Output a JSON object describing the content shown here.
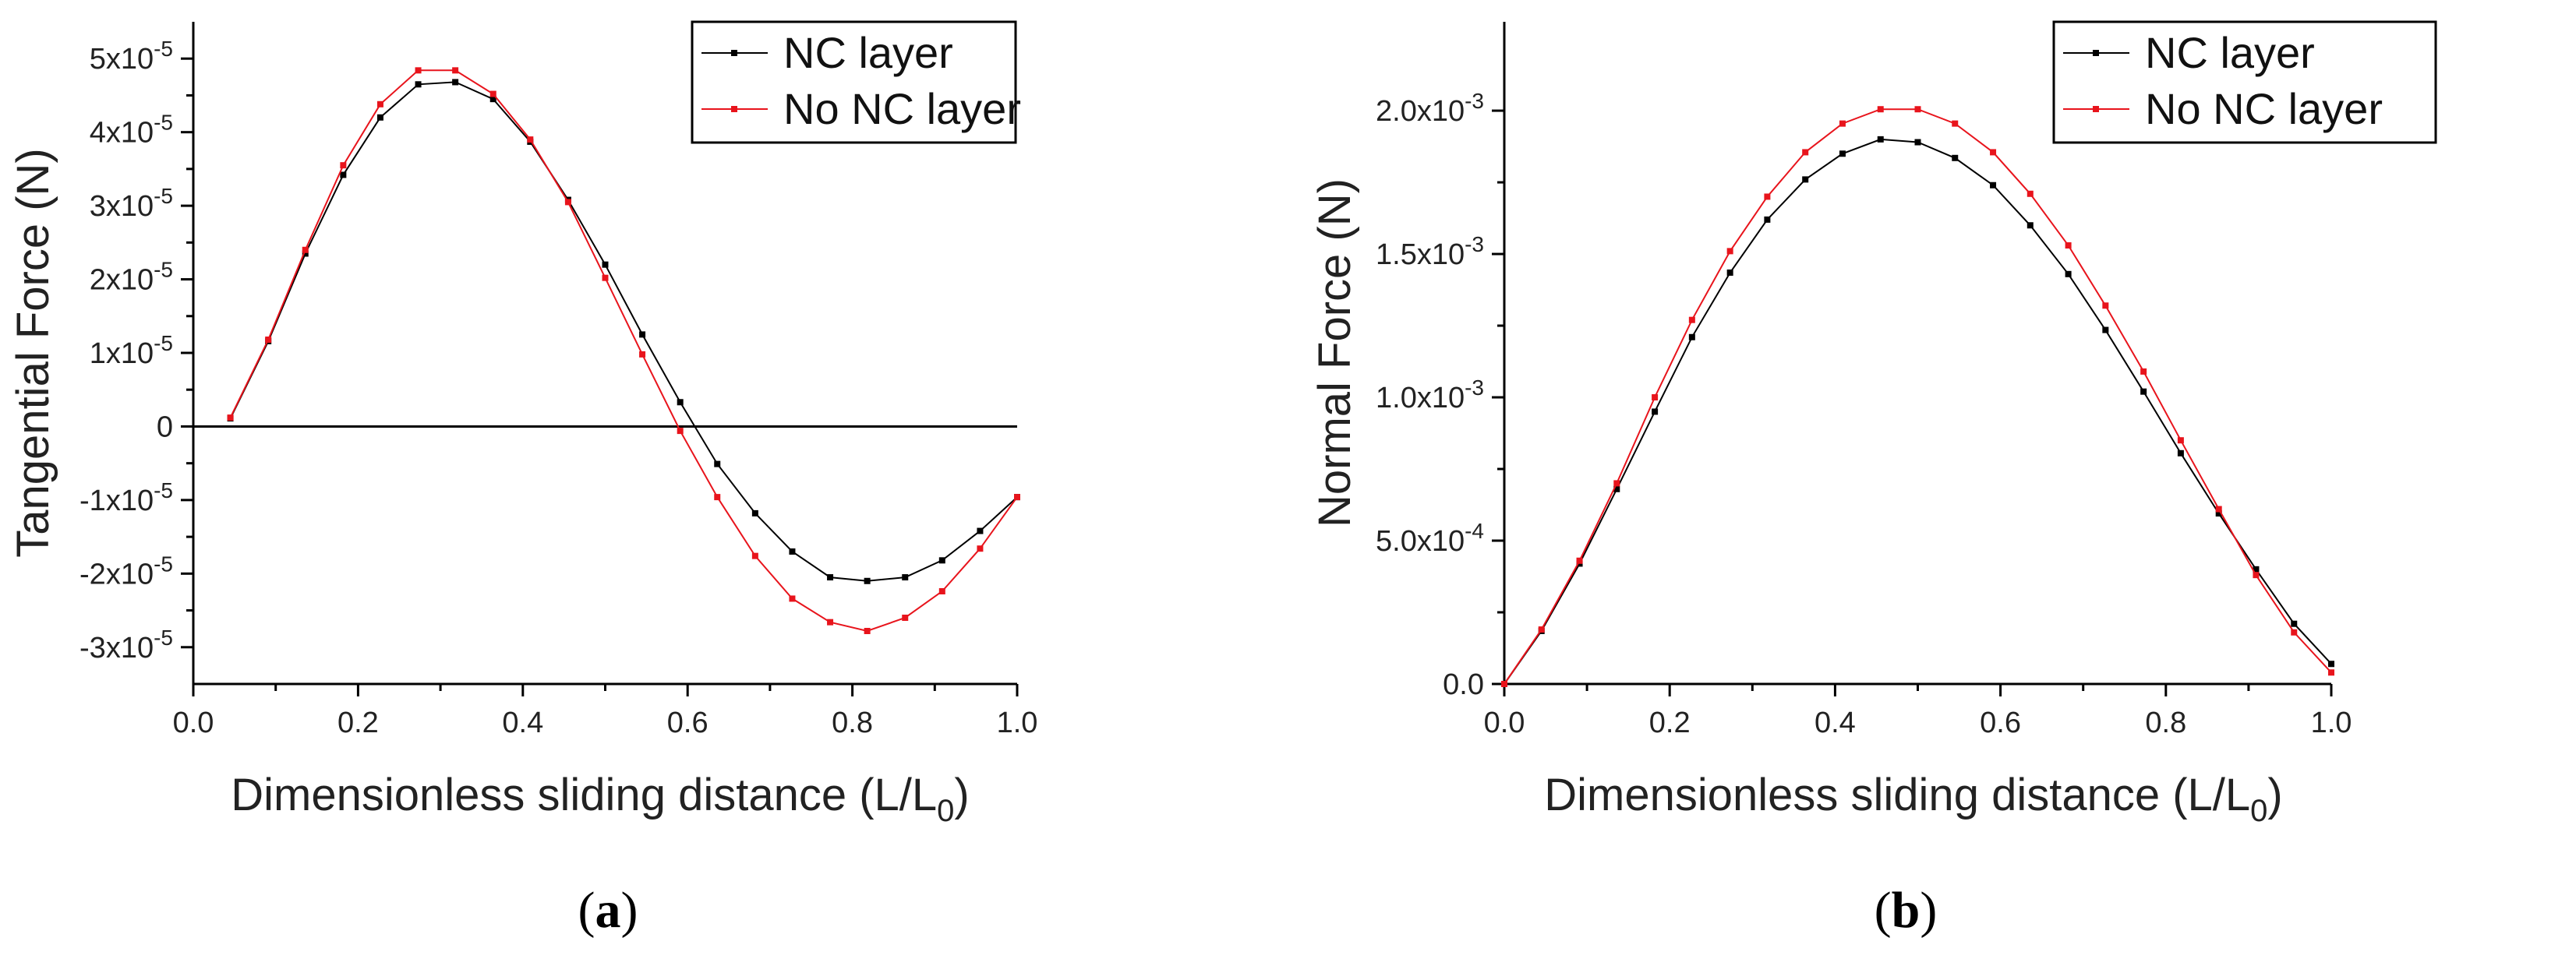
{
  "chart_data": [
    {
      "type": "line",
      "panel_label": "a",
      "xlabel_main": "Dimensionless sliding distance (L/L",
      "xlabel_sub": "0",
      "xlabel_end": ")",
      "ylabel": "Tangential Force (N)",
      "xlim": [
        0,
        1
      ],
      "ylim": [
        -3.5e-05,
        5.5e-05
      ],
      "zero_line": true,
      "legend_position": "top-right",
      "x_ticks": [
        {
          "value": 0.0,
          "label": "0.0"
        },
        {
          "value": 0.2,
          "label": "0.2"
        },
        {
          "value": 0.4,
          "label": "0.4"
        },
        {
          "value": 0.6,
          "label": "0.6"
        },
        {
          "value": 0.8,
          "label": "0.8"
        },
        {
          "value": 1.0,
          "label": "1.0"
        }
      ],
      "y_ticks": [
        {
          "value": 5e-05,
          "base": "5x10",
          "exp": "-5"
        },
        {
          "value": 4e-05,
          "base": "4x10",
          "exp": "-5"
        },
        {
          "value": 3e-05,
          "base": "3x10",
          "exp": "-5"
        },
        {
          "value": 2e-05,
          "base": "2x10",
          "exp": "-5"
        },
        {
          "value": 1e-05,
          "base": "1x10",
          "exp": "-5"
        },
        {
          "value": 0,
          "base": "0",
          "exp": ""
        },
        {
          "value": -1e-05,
          "base": "-1x10",
          "exp": "-5"
        },
        {
          "value": -2e-05,
          "base": "-2x10",
          "exp": "-5"
        },
        {
          "value": -3e-05,
          "base": "-3x10",
          "exp": "-5"
        }
      ],
      "series": [
        {
          "name": "NC layer",
          "color": "#000000",
          "x": [
            0.045,
            0.091,
            0.136,
            0.182,
            0.227,
            0.273,
            0.318,
            0.364,
            0.409,
            0.455,
            0.5,
            0.545,
            0.591,
            0.636,
            0.682,
            0.727,
            0.773,
            0.818,
            0.864,
            0.909,
            0.955,
            1.0
          ],
          "y": [
            1.1e-06,
            1.16e-05,
            2.35e-05,
            3.42e-05,
            4.2e-05,
            4.65e-05,
            4.68e-05,
            4.45e-05,
            3.87e-05,
            3.08e-05,
            2.2e-05,
            1.25e-05,
            3.3e-06,
            -5.1e-06,
            -1.18e-05,
            -1.7e-05,
            -2.05e-05,
            -2.1e-05,
            -2.05e-05,
            -1.82e-05,
            -1.42e-05,
            -9.6e-06
          ]
        },
        {
          "name": "No NC layer",
          "color": "#e8141c",
          "x": [
            0.045,
            0.091,
            0.136,
            0.182,
            0.227,
            0.273,
            0.318,
            0.364,
            0.409,
            0.455,
            0.5,
            0.545,
            0.591,
            0.636,
            0.682,
            0.727,
            0.773,
            0.818,
            0.864,
            0.909,
            0.955,
            1.0
          ],
          "y": [
            1.2e-06,
            1.18e-05,
            2.4e-05,
            3.55e-05,
            4.38e-05,
            4.84e-05,
            4.84e-05,
            4.52e-05,
            3.9e-05,
            3.05e-05,
            2.02e-05,
            9.8e-06,
            -6e-07,
            -9.6e-06,
            -1.76e-05,
            -2.34e-05,
            -2.66e-05,
            -2.78e-05,
            -2.6e-05,
            -2.24e-05,
            -1.66e-05,
            -9.6e-06
          ]
        }
      ]
    },
    {
      "type": "line",
      "panel_label": "b",
      "xlabel_main": "Dimensionless sliding distance (L/L",
      "xlabel_sub": "0",
      "xlabel_end": ")",
      "ylabel": "Normal Force (N)",
      "xlim": [
        0,
        1
      ],
      "ylim": [
        0,
        0.00231
      ],
      "zero_line": false,
      "legend_position": "top-right",
      "x_ticks": [
        {
          "value": 0.0,
          "label": "0.0"
        },
        {
          "value": 0.2,
          "label": "0.2"
        },
        {
          "value": 0.4,
          "label": "0.4"
        },
        {
          "value": 0.6,
          "label": "0.6"
        },
        {
          "value": 0.8,
          "label": "0.8"
        },
        {
          "value": 1.0,
          "label": "1.0"
        }
      ],
      "y_ticks": [
        {
          "value": 0.002,
          "base": "2.0x10",
          "exp": "-3"
        },
        {
          "value": 0.0015,
          "base": "1.5x10",
          "exp": "-3"
        },
        {
          "value": 0.001,
          "base": "1.0x10",
          "exp": "-3"
        },
        {
          "value": 0.0005,
          "base": "5.0x10",
          "exp": "-4"
        },
        {
          "value": 0,
          "base": "0.0",
          "exp": ""
        }
      ],
      "series": [
        {
          "name": "NC layer",
          "color": "#000000",
          "x": [
            0.0,
            0.045,
            0.091,
            0.136,
            0.182,
            0.227,
            0.273,
            0.318,
            0.364,
            0.409,
            0.455,
            0.5,
            0.545,
            0.591,
            0.636,
            0.682,
            0.727,
            0.773,
            0.818,
            0.864,
            0.909,
            0.955,
            1.0
          ],
          "y": [
            0.0,
            0.000185,
            0.00042,
            0.00068,
            0.00095,
            0.00121,
            0.001435,
            0.00162,
            0.00176,
            0.00185,
            0.0019,
            0.00189,
            0.001835,
            0.00174,
            0.0016,
            0.00143,
            0.001235,
            0.00102,
            0.000805,
            0.000595,
            0.0004,
            0.00021,
            7e-05
          ]
        },
        {
          "name": "No NC layer",
          "color": "#e8141c",
          "x": [
            0.0,
            0.045,
            0.091,
            0.136,
            0.182,
            0.227,
            0.273,
            0.318,
            0.364,
            0.409,
            0.455,
            0.5,
            0.545,
            0.591,
            0.636,
            0.682,
            0.727,
            0.773,
            0.818,
            0.864,
            0.909,
            0.955,
            1.0
          ],
          "y": [
            0.0,
            0.00019,
            0.00043,
            0.0007,
            0.001,
            0.00127,
            0.00151,
            0.0017,
            0.001855,
            0.001955,
            0.002005,
            0.002005,
            0.001955,
            0.001855,
            0.00171,
            0.00153,
            0.00132,
            0.00109,
            0.00085,
            0.00061,
            0.00038,
            0.00018,
            4e-05
          ]
        }
      ]
    }
  ]
}
